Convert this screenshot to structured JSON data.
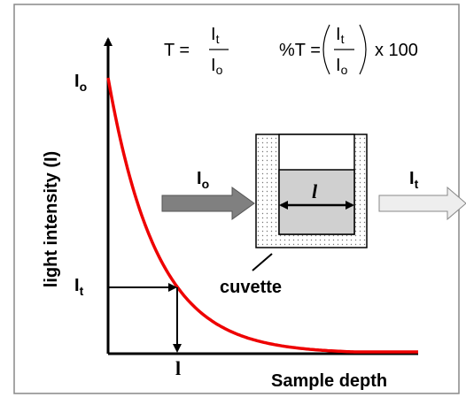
{
  "formula_t": {
    "lhs": "T =",
    "numerator": {
      "main": "I",
      "sub": "t"
    },
    "denominator": {
      "main": "I",
      "sub": "o"
    }
  },
  "formula_pct": {
    "lhs": "%T =",
    "numerator": {
      "main": "I",
      "sub": "t"
    },
    "denominator": {
      "main": "I",
      "sub": "o"
    },
    "rhs": "x 100"
  },
  "axes": {
    "y_label": "light intensity (I)",
    "x_label": "Sample depth",
    "y_top": {
      "main": "I",
      "sub": "o"
    },
    "y_mark": {
      "main": "I",
      "sub": "t"
    },
    "x_mark": "l"
  },
  "beam": {
    "incident": {
      "main": "I",
      "sub": "o"
    },
    "transmitted": {
      "main": "I",
      "sub": "t"
    }
  },
  "cuvette": {
    "label": "cuvette",
    "path_length": "l"
  }
}
